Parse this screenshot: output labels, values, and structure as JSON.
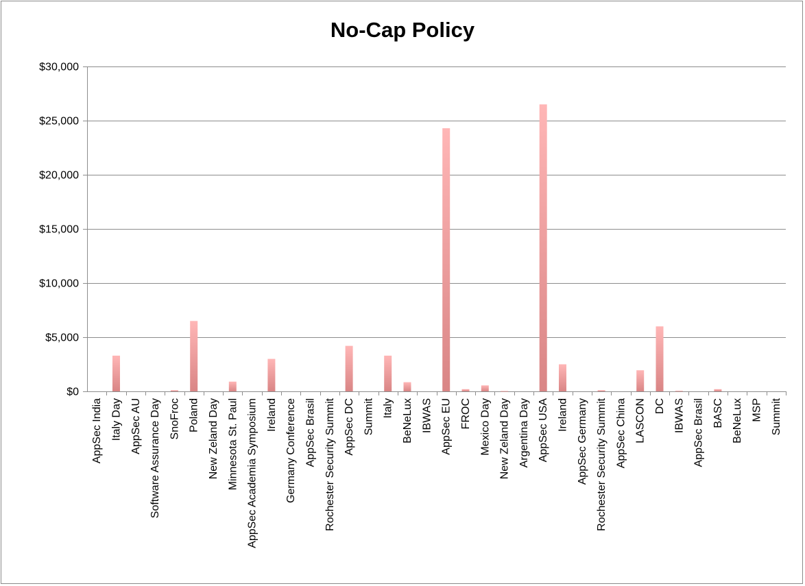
{
  "chart_data": {
    "type": "bar",
    "title": "No-Cap Policy",
    "xlabel": "",
    "ylabel": "",
    "ylim": [
      0,
      30000
    ],
    "yticks": [
      0,
      5000,
      10000,
      15000,
      20000,
      25000,
      30000
    ],
    "ytick_labels": [
      "$0",
      "$5,000",
      "$10,000",
      "$15,000",
      "$20,000",
      "$25,000",
      "$30,000"
    ],
    "grid": true,
    "legend": "none",
    "bar_color_top": "#ffb6b6",
    "bar_color_bottom": "#d98585",
    "categories": [
      "AppSec India",
      "Italy Day",
      "AppSec AU",
      "Software Assurance Day",
      "SnoFroc",
      "Poland",
      "New Zeland Day",
      "Minnesota St. Paul",
      "AppSec Academia Symposium",
      "Ireland",
      "Germany Conference",
      "AppSec Brasil",
      "Rochester Security Summit",
      "AppSec DC",
      "Summit",
      "Italy",
      "BeNeLux",
      "IBWAS",
      "AppSec EU",
      "FROC",
      "Mexico Day",
      "New Zeland Day",
      "Argentina Day",
      "AppSec USA",
      "Ireland",
      "AppSec Germany",
      "Rochester Security Summit",
      "AppSec China",
      "LASCON",
      "DC",
      "IBWAS",
      "AppSec Brasil",
      "BASC",
      "BeNeLux",
      "MSP",
      "Summit"
    ],
    "values": [
      0,
      3300,
      0,
      0,
      100,
      6500,
      0,
      900,
      0,
      3000,
      0,
      0,
      0,
      4200,
      0,
      3300,
      850,
      0,
      24300,
      200,
      550,
      30,
      0,
      26500,
      2500,
      0,
      100,
      0,
      1950,
      6000,
      50,
      0,
      200,
      0,
      0,
      0
    ]
  }
}
